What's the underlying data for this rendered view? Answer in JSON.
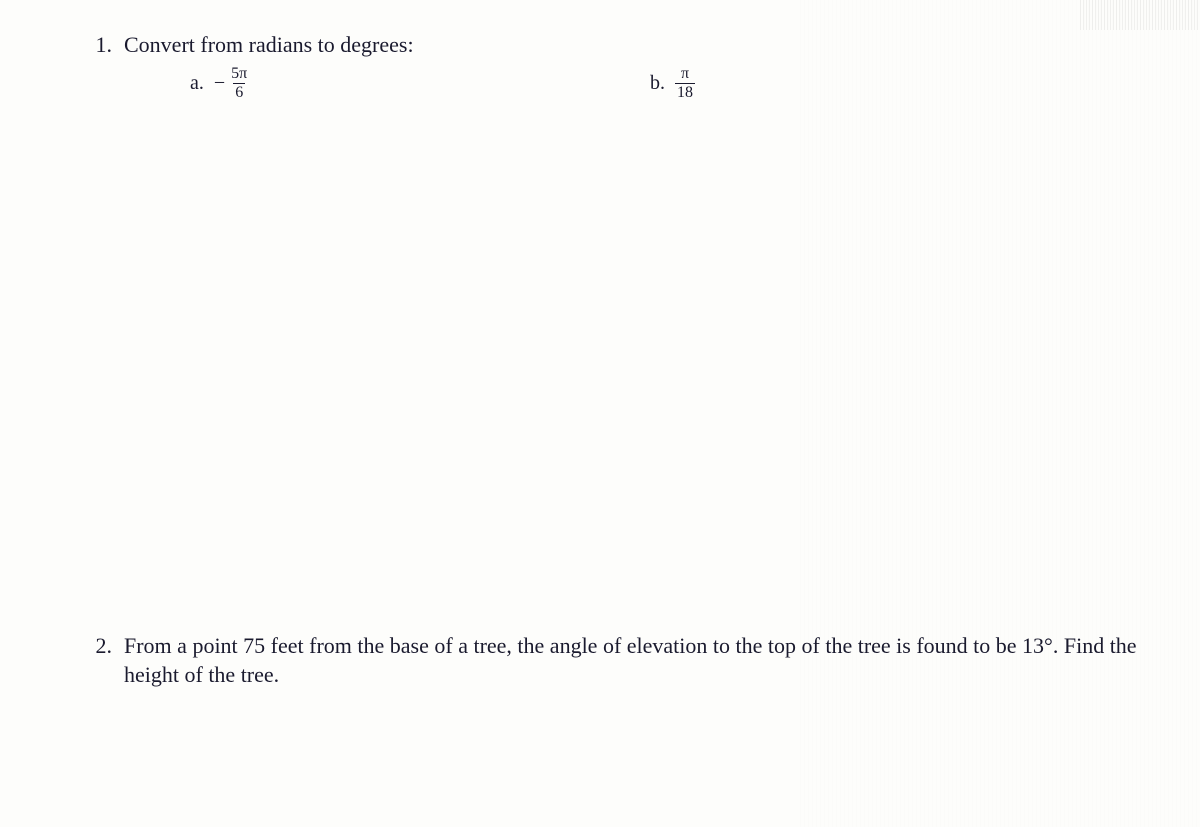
{
  "page": {
    "background_color": "#fdfdfb",
    "text_color": "#1a1a2e",
    "font_family": "Times New Roman",
    "body_fontsize_pt": 16
  },
  "problems": [
    {
      "number": "1.",
      "prompt": "Convert from radians to degrees:",
      "subparts": [
        {
          "label": "a.",
          "sign": "−",
          "numerator": "5π",
          "denominator": "6"
        },
        {
          "label": "b.",
          "sign": "",
          "numerator": "π",
          "denominator": "18"
        }
      ]
    },
    {
      "number": "2.",
      "prompt": "From a point 75 feet from the base of a tree, the angle of elevation to the top of the tree is found to be 13°.  Find the height of the tree."
    }
  ]
}
